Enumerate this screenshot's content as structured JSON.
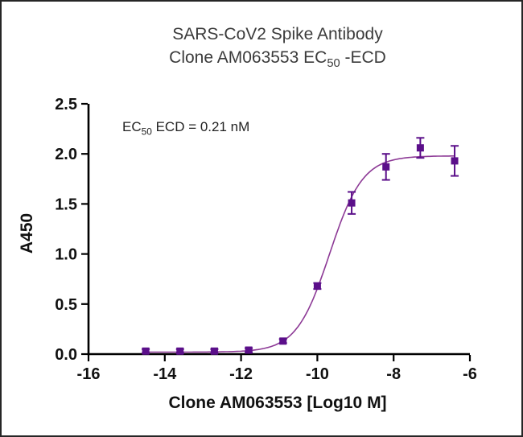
{
  "chart_data": {
    "type": "scatter",
    "title": {
      "line1": "SARS-CoV2 Spike Antibody",
      "line2_pre": "Clone AM063553 EC",
      "line2_sub": "50",
      "line2_post": " -ECD"
    },
    "annotation": {
      "pre": "EC",
      "sub": "50",
      "post": " ECD = 0.21 nM"
    },
    "xlabel": "Clone AM063553 [Log10 M]",
    "ylabel": "A450",
    "xlim": [
      -16,
      -6
    ],
    "ylim": [
      0,
      2.5
    ],
    "xticks": [
      {
        "v": -16,
        "label": "-16"
      },
      {
        "v": -14,
        "label": "-14"
      },
      {
        "v": -12,
        "label": "-12"
      },
      {
        "v": -10,
        "label": "-10"
      },
      {
        "v": -8,
        "label": "-8"
      },
      {
        "v": -6,
        "label": "-6"
      }
    ],
    "yticks": [
      {
        "v": 0,
        "label": "0.0"
      },
      {
        "v": 0.5,
        "label": "0.5"
      },
      {
        "v": 1.0,
        "label": "1.0"
      },
      {
        "v": 1.5,
        "label": "1.5"
      },
      {
        "v": 2.0,
        "label": "2.0"
      },
      {
        "v": 2.5,
        "label": "2.5"
      }
    ],
    "points": {
      "x": [
        -14.5,
        -13.6,
        -12.7,
        -11.8,
        -10.9,
        -10.0,
        -9.1,
        -8.2,
        -7.3,
        -6.4
      ],
      "y": [
        0.03,
        0.03,
        0.03,
        0.04,
        0.13,
        0.68,
        1.51,
        1.87,
        2.06,
        1.93
      ],
      "err": [
        0.02,
        0.02,
        0.02,
        0.02,
        0.02,
        0.03,
        0.11,
        0.13,
        0.1,
        0.15
      ]
    },
    "fit": {
      "bottom": 0.02,
      "top": 1.98,
      "log_ec50": -9.68,
      "hill": 1.0,
      "ec50_nM": 0.21
    },
    "legend": "none",
    "grid": false,
    "colors": {
      "marker": "#5b0f8a",
      "line": "#8d3a96",
      "axis": "#000000",
      "text": "#111111"
    }
  }
}
